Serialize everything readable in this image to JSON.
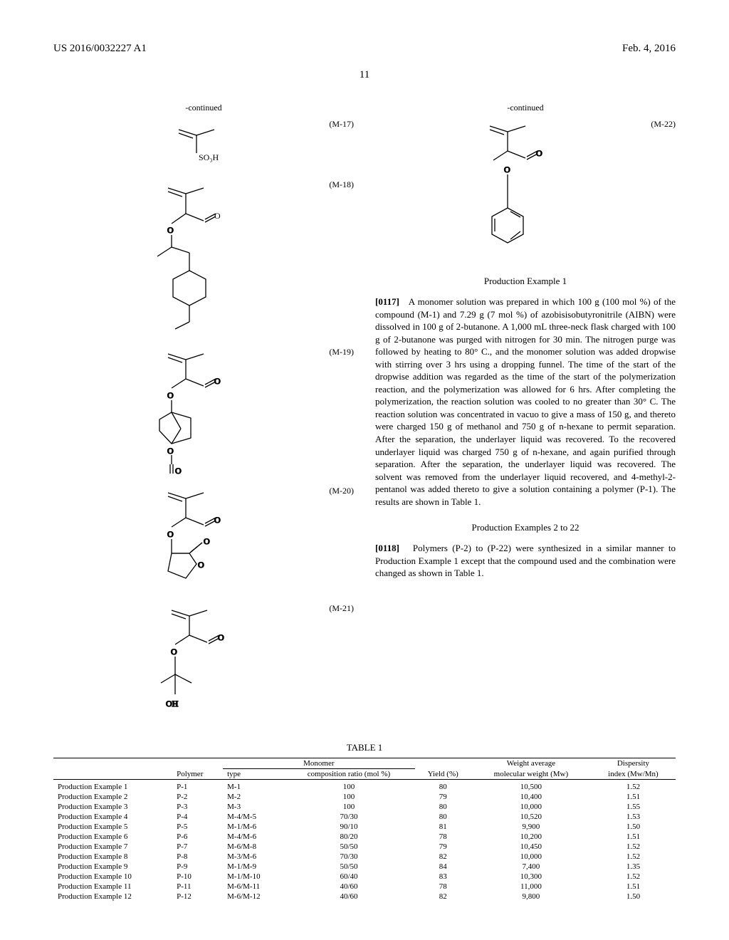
{
  "header": {
    "doc_id": "US 2016/0032227 A1",
    "date": "Feb. 4, 2016",
    "page": "11"
  },
  "left": {
    "continued": "-continued",
    "labels": {
      "m17": "(M-17)",
      "m18": "(M-18)",
      "m19": "(M-19)",
      "m20": "(M-20)",
      "m21": "(M-21)"
    }
  },
  "right": {
    "continued": "-continued",
    "labels": {
      "m22": "(M-22)"
    },
    "prod_ex1_heading": "Production Example 1",
    "para117_num": "[0117]",
    "para117": "A monomer solution was prepared in which 100 g (100 mol %) of the compound (M-1) and 7.29 g (7 mol %) of azobisisobutyronitrile (AIBN) were dissolved in 100 g of 2-butanone. A 1,000 mL three-neck flask charged with 100 g of 2-butanone was purged with nitrogen for 30 min. The nitrogen purge was followed by heating to 80° C., and the monomer solution was added dropwise with stirring over 3 hrs using a dropping funnel. The time of the start of the dropwise addition was regarded as the time of the start of the polymerization reaction, and the polymerization was allowed for 6 hrs. After completing the polymerization, the reaction solution was cooled to no greater than 30° C. The reaction solution was concentrated in vacuo to give a mass of 150 g, and thereto were charged 150 g of methanol and 750 g of n-hexane to permit separation. After the separation, the underlayer liquid was recovered. To the recovered underlayer liquid was charged 750 g of n-hexane, and again purified through separation. After the separation, the underlayer liquid was recovered. The solvent was removed from the underlayer liquid recovered, and 4-methyl-2-pentanol was added thereto to give a solution containing a polymer (P-1). The results are shown in Table 1.",
    "prod_ex2_heading": "Production Examples 2 to 22",
    "para118_num": "[0118]",
    "para118": "Polymers (P-2) to (P-22) were synthesized in a similar manner to Production Example 1 except that the compound used and the combination were changed as shown in Table 1."
  },
  "table": {
    "title": "TABLE 1",
    "headers": {
      "polymer": "Polymer",
      "type": "type",
      "monomer": "Monomer",
      "composition": "composition ratio (mol %)",
      "yield": "Yield (%)",
      "mw_group": "Weight average",
      "mw": "molecular weight (Mw)",
      "disp_group": "Dispersity",
      "disp": "index (Mw/Mn)"
    },
    "rows": [
      {
        "name": "Production Example 1",
        "polymer": "P-1",
        "type": "M-1",
        "comp": "100",
        "yield": "80",
        "mw": "10,500",
        "disp": "1.52"
      },
      {
        "name": "Production Example 2",
        "polymer": "P-2",
        "type": "M-2",
        "comp": "100",
        "yield": "79",
        "mw": "10,400",
        "disp": "1.51"
      },
      {
        "name": "Production Example 3",
        "polymer": "P-3",
        "type": "M-3",
        "comp": "100",
        "yield": "80",
        "mw": "10,000",
        "disp": "1.55"
      },
      {
        "name": "Production Example 4",
        "polymer": "P-4",
        "type": "M-4/M-5",
        "comp": "70/30",
        "yield": "80",
        "mw": "10,520",
        "disp": "1.53"
      },
      {
        "name": "Production Example 5",
        "polymer": "P-5",
        "type": "M-1/M-6",
        "comp": "90/10",
        "yield": "81",
        "mw": "9,900",
        "disp": "1.50"
      },
      {
        "name": "Production Example 6",
        "polymer": "P-6",
        "type": "M-4/M-6",
        "comp": "80/20",
        "yield": "78",
        "mw": "10,200",
        "disp": "1.51"
      },
      {
        "name": "Production Example 7",
        "polymer": "P-7",
        "type": "M-6/M-8",
        "comp": "50/50",
        "yield": "79",
        "mw": "10,450",
        "disp": "1.52"
      },
      {
        "name": "Production Example 8",
        "polymer": "P-8",
        "type": "M-3/M-6",
        "comp": "70/30",
        "yield": "82",
        "mw": "10,000",
        "disp": "1.52"
      },
      {
        "name": "Production Example 9",
        "polymer": "P-9",
        "type": "M-1/M-9",
        "comp": "50/50",
        "yield": "84",
        "mw": "7,400",
        "disp": "1.35"
      },
      {
        "name": "Production Example 10",
        "polymer": "P-10",
        "type": "M-1/M-10",
        "comp": "60/40",
        "yield": "83",
        "mw": "10,300",
        "disp": "1.52"
      },
      {
        "name": "Production Example 11",
        "polymer": "P-11",
        "type": "M-6/M-11",
        "comp": "40/60",
        "yield": "78",
        "mw": "11,000",
        "disp": "1.51"
      },
      {
        "name": "Production Example 12",
        "polymer": "P-12",
        "type": "M-6/M-12",
        "comp": "40/60",
        "yield": "82",
        "mw": "9,800",
        "disp": "1.50"
      }
    ]
  },
  "style": {
    "font_family": "Times New Roman",
    "body_font_size": 13,
    "table_font_size": 11,
    "text_color": "#000000",
    "background": "#ffffff",
    "stroke": "#000000"
  }
}
